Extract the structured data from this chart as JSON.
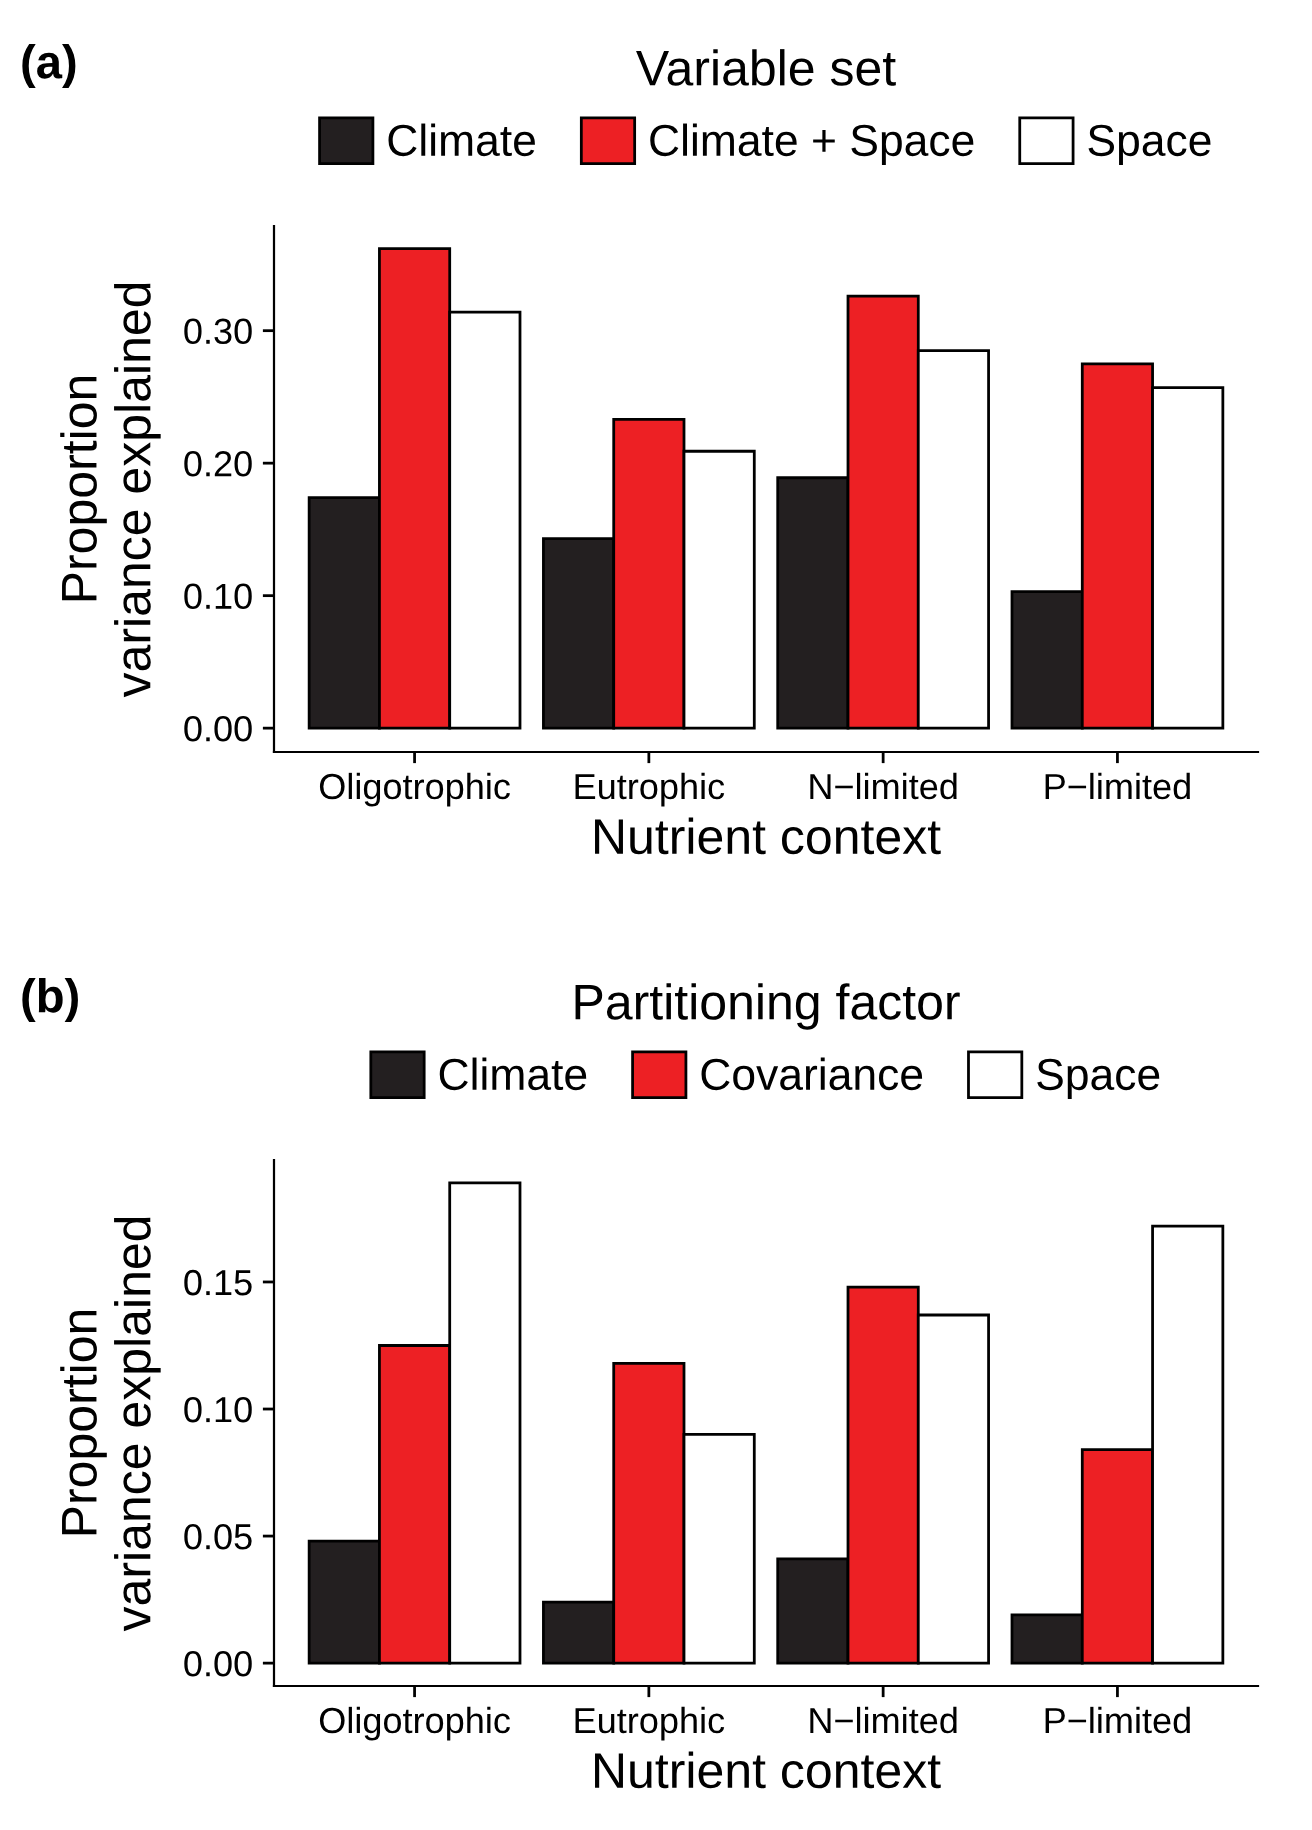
{
  "chart_data": [
    {
      "type": "bar",
      "title": "(a)",
      "legend_title": "Variable set",
      "xlabel": "Nutrient context",
      "ylabel": "Proportion\nvariance explained",
      "categories": [
        "Oligotrophic",
        "Eutrophic",
        "N−limited",
        "P−limited"
      ],
      "series": [
        {
          "name": "Climate",
          "color": "#231f20",
          "values": [
            0.174,
            0.143,
            0.189,
            0.103
          ]
        },
        {
          "name": "Climate + Space",
          "color": "#ed2024",
          "values": [
            0.362,
            0.233,
            0.326,
            0.275
          ]
        },
        {
          "name": "Space",
          "color": "#ffffff",
          "values": [
            0.314,
            0.209,
            0.285,
            0.257
          ]
        }
      ],
      "ylim": [
        -0.018,
        0.379
      ],
      "yticks": [
        {
          "value": 0,
          "label": "0.00"
        },
        {
          "value": 0.1,
          "label": "0.10"
        },
        {
          "value": 0.2,
          "label": "0.20"
        },
        {
          "value": 0.3,
          "label": "0.30"
        }
      ],
      "legend": "top",
      "grid": false
    },
    {
      "type": "bar",
      "title": "(b)",
      "legend_title": "Partitioning factor",
      "xlabel": "Nutrient context",
      "ylabel": "Proportion\nvariance explained",
      "categories": [
        "Oligotrophic",
        "Eutrophic",
        "N−limited",
        "P−limited"
      ],
      "series": [
        {
          "name": "Climate",
          "color": "#231f20",
          "values": [
            0.048,
            0.024,
            0.041,
            0.019
          ]
        },
        {
          "name": "Covariance",
          "color": "#ed2024",
          "values": [
            0.125,
            0.118,
            0.148,
            0.084
          ]
        },
        {
          "name": "Space",
          "color": "#ffffff",
          "values": [
            0.189,
            0.09,
            0.137,
            0.172
          ]
        }
      ],
      "ylim": [
        -0.009,
        0.198
      ],
      "yticks": [
        {
          "value": 0,
          "label": "0.00"
        },
        {
          "value": 0.05,
          "label": "0.05"
        },
        {
          "value": 0.1,
          "label": "0.10"
        },
        {
          "value": 0.15,
          "label": "0.15"
        }
      ],
      "legend": "top",
      "grid": false
    }
  ]
}
